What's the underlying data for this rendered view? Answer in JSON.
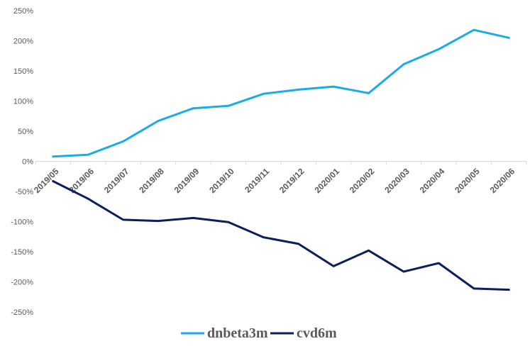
{
  "chart_data": {
    "type": "line",
    "title": "",
    "xlabel": "",
    "ylabel": "",
    "categories": [
      "2019/05",
      "2019/06",
      "2019/07",
      "2019/08",
      "2019/09",
      "2019/10",
      "2019/11",
      "2019/12",
      "2020/01",
      "2020/02",
      "2020/03",
      "2020/04",
      "2020/05",
      "2020/06"
    ],
    "series": [
      {
        "name": "dnbeta3m",
        "color": "#1AADE4",
        "values": [
          8,
          11,
          33,
          67,
          88,
          92,
          112,
          119,
          124,
          113,
          161,
          186,
          218,
          205
        ]
      },
      {
        "name": "cvd6m",
        "color": "#0A1F5C",
        "values": [
          -33,
          -62,
          -97,
          -99,
          -94,
          -101,
          -126,
          -137,
          -174,
          -148,
          -183,
          -169,
          -211,
          -213
        ]
      }
    ],
    "ylim": [
      -250,
      250
    ],
    "yticks": [
      250,
      200,
      150,
      100,
      50,
      0,
      -50,
      -100,
      -150,
      -200,
      -250
    ],
    "ytick_labels": [
      "250%",
      "200%",
      "150%",
      "100%",
      "50%",
      "0%",
      "-50%",
      "-100%",
      "-150%",
      "-200%",
      "-250%"
    ],
    "grid": false,
    "legend_position": "bottom"
  }
}
